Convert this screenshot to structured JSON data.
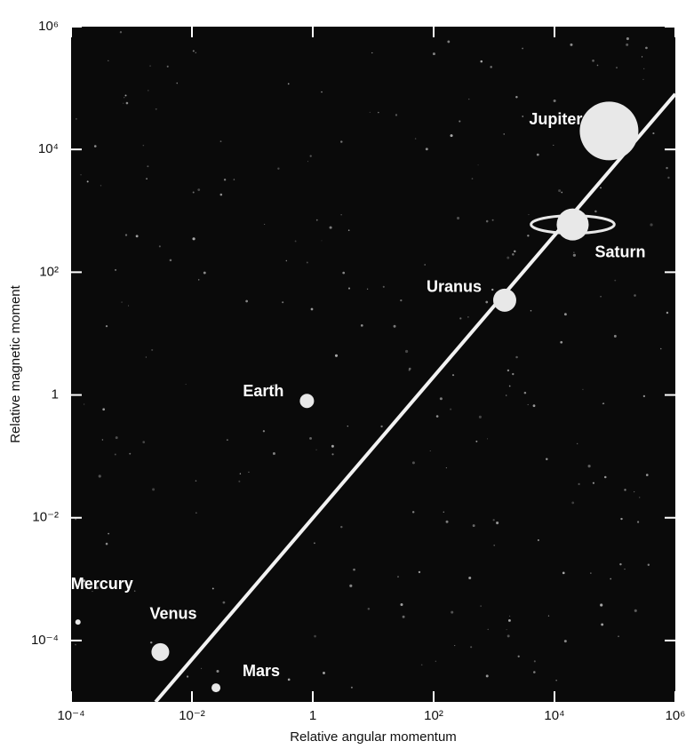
{
  "chart_data": {
    "type": "scatter",
    "xlabel": "Relative angular momentum",
    "ylabel": "Relative magnetic moment",
    "labels": [
      "Mercury",
      "Venus",
      "Earth",
      "Mars",
      "Jupiter",
      "Saturn",
      "Uranus"
    ],
    "x": [
      0.00013,
      0.003,
      0.8,
      0.025,
      80000,
      20000,
      1500
    ],
    "y": [
      0.0002,
      6.5e-05,
      0.8,
      1.7e-05,
      20000,
      600,
      35
    ],
    "color": "#e8e8e8",
    "line": {
      "x": [
        0.0025,
        1000000
      ],
      "y": [
        1e-05,
        80000
      ],
      "color": "#f2f2f2"
    },
    "log_x": true,
    "log_y": true,
    "xlim": [
      0.0001,
      1000000
    ],
    "ylim": [
      1e-05,
      1000000
    ],
    "xticks": [
      {
        "value": 0.0001,
        "label": "10⁻⁴"
      },
      {
        "value": 0.01,
        "label": "10⁻²"
      },
      1,
      {
        "value": 100,
        "label": "10²"
      },
      {
        "value": 10000,
        "label": "10⁴"
      },
      {
        "value": 1000000,
        "label": "10⁶"
      }
    ],
    "yticks": [
      {
        "value": 0.0001,
        "label": "10⁻⁴"
      },
      {
        "value": 0.01,
        "label": "10⁻²"
      },
      1,
      {
        "value": 100,
        "label": "10²"
      },
      {
        "value": 10000,
        "label": "10⁴"
      },
      {
        "value": 1000000,
        "label": "10⁶"
      }
    ]
  }
}
